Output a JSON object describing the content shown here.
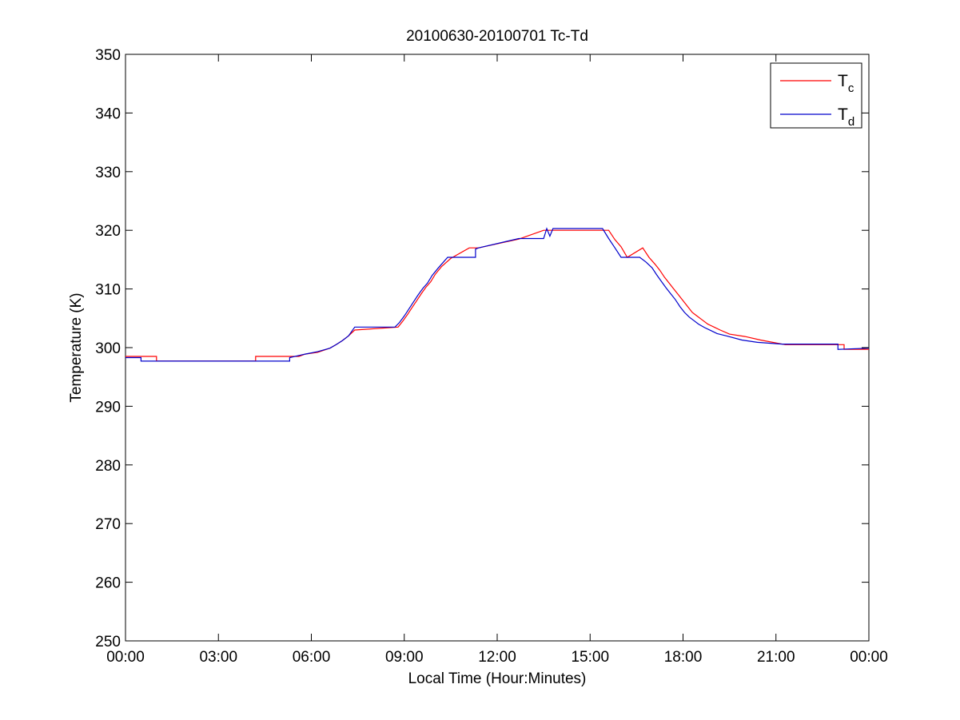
{
  "chart_data": {
    "type": "line",
    "title": "20100630-20100701 Tc-Td",
    "xlabel": "Local Time (Hour:Minutes)",
    "ylabel": "Temperature (K)",
    "xlim": [
      0,
      24
    ],
    "ylim": [
      250,
      350
    ],
    "x_ticks": [
      0,
      3,
      6,
      9,
      12,
      15,
      18,
      21,
      24
    ],
    "x_tick_labels": [
      "00:00",
      "03:00",
      "06:00",
      "09:00",
      "12:00",
      "15:00",
      "18:00",
      "21:00",
      "00:00"
    ],
    "y_ticks": [
      250,
      260,
      270,
      280,
      290,
      300,
      310,
      320,
      330,
      340,
      350
    ],
    "y_tick_labels": [
      "250",
      "260",
      "270",
      "280",
      "290",
      "300",
      "310",
      "320",
      "330",
      "340",
      "350"
    ],
    "grid": false,
    "legend_position": "top-right",
    "series": [
      {
        "name": "T",
        "subscript": "c",
        "color": "#ff0000",
        "x": [
          0,
          1.0,
          1.0,
          4.2,
          4.2,
          5.6,
          5.6,
          5.8,
          6.2,
          6.6,
          6.8,
          7.0,
          7.2,
          7.4,
          8.8,
          8.95,
          9.1,
          9.25,
          9.4,
          9.55,
          9.7,
          9.85,
          10.0,
          10.2,
          10.5,
          11.1,
          11.4,
          12.7,
          13.5,
          15.6,
          15.8,
          16.0,
          16.2,
          16.7,
          16.9,
          17.1,
          17.25,
          17.4,
          17.55,
          17.7,
          17.85,
          18.0,
          18.15,
          18.3,
          18.45,
          18.6,
          18.8,
          19.0,
          19.2,
          19.5,
          20.0,
          20.5,
          21.3,
          23.2,
          23.2,
          24.0
        ],
        "y": [
          298.5,
          298.5,
          297.7,
          297.7,
          298.5,
          298.5,
          298.5,
          298.9,
          299.2,
          299.9,
          300.5,
          301.2,
          302.0,
          303.0,
          303.5,
          304.5,
          305.6,
          306.8,
          308.0,
          309.2,
          310.3,
          311.2,
          312.5,
          313.8,
          315.2,
          317.0,
          317.0,
          318.5,
          320.0,
          320.0,
          318.4,
          317.2,
          315.4,
          317.0,
          315.4,
          314.2,
          313.2,
          312.0,
          311.0,
          310.0,
          309.0,
          308.0,
          307.0,
          306.0,
          305.4,
          304.8,
          304.0,
          303.5,
          303.0,
          302.3,
          301.9,
          301.3,
          300.5,
          300.5,
          299.7,
          299.7
        ]
      },
      {
        "name": "T",
        "subscript": "d",
        "color": "#0000cc",
        "x": [
          0,
          0.5,
          0.5,
          5.3,
          5.3,
          5.8,
          6.2,
          6.6,
          6.8,
          7.0,
          7.2,
          7.4,
          8.7,
          8.85,
          9.0,
          9.15,
          9.3,
          9.45,
          9.6,
          9.75,
          9.9,
          10.1,
          10.4,
          11.3,
          11.3,
          11.4,
          12.7,
          13.5,
          13.6,
          13.7,
          13.8,
          14.0,
          15.4,
          15.6,
          15.8,
          16.0,
          16.6,
          16.8,
          17.0,
          17.15,
          17.3,
          17.45,
          17.6,
          17.75,
          17.9,
          18.05,
          18.2,
          18.35,
          18.5,
          18.7,
          18.9,
          19.1,
          19.4,
          19.9,
          20.4,
          21.2,
          23.0,
          23.0,
          24.0
        ],
        "y": [
          298.3,
          298.3,
          297.7,
          297.7,
          298.3,
          298.9,
          299.3,
          299.9,
          300.5,
          301.2,
          302.0,
          303.5,
          303.5,
          304.3,
          305.4,
          306.6,
          307.8,
          309.0,
          310.1,
          311.0,
          312.3,
          313.6,
          315.4,
          315.4,
          316.8,
          317.0,
          318.6,
          318.6,
          320.3,
          319.0,
          320.3,
          320.3,
          320.3,
          318.6,
          317.0,
          315.4,
          315.4,
          314.6,
          313.6,
          312.4,
          311.3,
          310.2,
          309.2,
          308.2,
          307.0,
          306.0,
          305.2,
          304.6,
          304.0,
          303.4,
          302.9,
          302.4,
          302.0,
          301.3,
          300.9,
          300.6,
          300.6,
          299.7,
          299.9
        ]
      }
    ]
  }
}
